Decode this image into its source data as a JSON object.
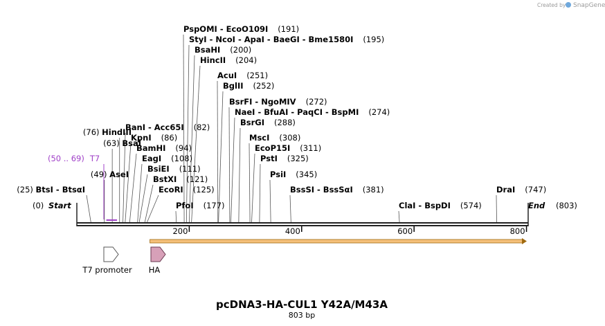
{
  "watermark": {
    "created_by": "Created by",
    "brand": "SnapGene",
    "icon": "snapgene-logo-icon"
  },
  "map": {
    "title": "pcDNA3-HA-CUL1 Y42A/M43A",
    "length_label": "803 bp",
    "length_bp": 803,
    "start_label": "Start",
    "start_pos": "(0)",
    "end_label": "End",
    "end_pos": "(803)",
    "ruler_ticks": [
      "200",
      "400",
      "600",
      "800"
    ],
    "ruler_values": [
      200,
      400,
      600,
      800
    ]
  },
  "sites": [
    {
      "names": [
        "BtsI",
        "BtsαI"
      ],
      "pos": "(25)",
      "bp": 25
    },
    {
      "names": [
        "AseI"
      ],
      "pos": "(49)",
      "bp": 49
    },
    {
      "names": [
        "BsaI"
      ],
      "pos": "(63)",
      "bp": 63
    },
    {
      "names": [
        "HindIII"
      ],
      "pos": "(76)",
      "bp": 76
    },
    {
      "names": [
        "BanI",
        "Acc65I"
      ],
      "pos": "(82)",
      "bp": 82
    },
    {
      "names": [
        "KpnI"
      ],
      "pos": "(86)",
      "bp": 86
    },
    {
      "names": [
        "BamHI"
      ],
      "pos": "(94)",
      "bp": 94
    },
    {
      "names": [
        "EagI"
      ],
      "pos": "(108)",
      "bp": 108
    },
    {
      "names": [
        "BsiEI"
      ],
      "pos": "(111)",
      "bp": 111
    },
    {
      "names": [
        "BstXI"
      ],
      "pos": "(121)",
      "bp": 121
    },
    {
      "names": [
        "EcoRI"
      ],
      "pos": "(125)",
      "bp": 125
    },
    {
      "names": [
        "PfoI"
      ],
      "pos": "(177)",
      "bp": 177
    },
    {
      "names": [
        "PspOMI",
        "EcoO109I"
      ],
      "pos": "(191)",
      "bp": 191
    },
    {
      "names": [
        "StyI",
        "NcoI",
        "ApaI",
        "BaeGI",
        "Bme1580I"
      ],
      "pos": "(195)",
      "bp": 195
    },
    {
      "names": [
        "BsaHI"
      ],
      "pos": "(200)",
      "bp": 200
    },
    {
      "names": [
        "HincII"
      ],
      "pos": "(204)",
      "bp": 204
    },
    {
      "names": [
        "AcuI"
      ],
      "pos": "(251)",
      "bp": 251
    },
    {
      "names": [
        "BglII"
      ],
      "pos": "(252)",
      "bp": 252
    },
    {
      "names": [
        "BsrFI",
        "NgoMIV"
      ],
      "pos": "(272)",
      "bp": 272
    },
    {
      "names": [
        "NaeI",
        "BfuAI",
        "PaqCI",
        "BspMI"
      ],
      "pos": "(274)",
      "bp": 274
    },
    {
      "names": [
        "BsrGI"
      ],
      "pos": "(288)",
      "bp": 288
    },
    {
      "names": [
        "MscI"
      ],
      "pos": "(308)",
      "bp": 308
    },
    {
      "names": [
        "EcoP15I"
      ],
      "pos": "(311)",
      "bp": 311
    },
    {
      "names": [
        "PstI"
      ],
      "pos": "(325)",
      "bp": 325
    },
    {
      "names": [
        "PsiI"
      ],
      "pos": "(345)",
      "bp": 345
    },
    {
      "names": [
        "BssSI",
        "BssSαI"
      ],
      "pos": "(381)",
      "bp": 381
    },
    {
      "names": [
        "ClaI",
        "BspDI"
      ],
      "pos": "(574)",
      "bp": 574
    },
    {
      "names": [
        "DraI"
      ],
      "pos": "(747)",
      "bp": 747
    }
  ],
  "primer": {
    "name": "T7",
    "range": "(50 .. 69)",
    "start": 50,
    "end": 69,
    "color": "#a040c8"
  },
  "features": [
    {
      "name": "T7 promoter",
      "start": 50,
      "end": 69,
      "fill": "#ffffff",
      "stroke": "#555555"
    },
    {
      "name": "HA",
      "start": 130,
      "end": 157,
      "fill": "#d7a0b8",
      "stroke": "#6a3a50"
    }
  ],
  "orf": {
    "start": 130,
    "end": 803,
    "color": "#f5c07a",
    "stroke": "#a06a10"
  },
  "colors": {
    "backbone": "#222222",
    "line": "#555555"
  }
}
